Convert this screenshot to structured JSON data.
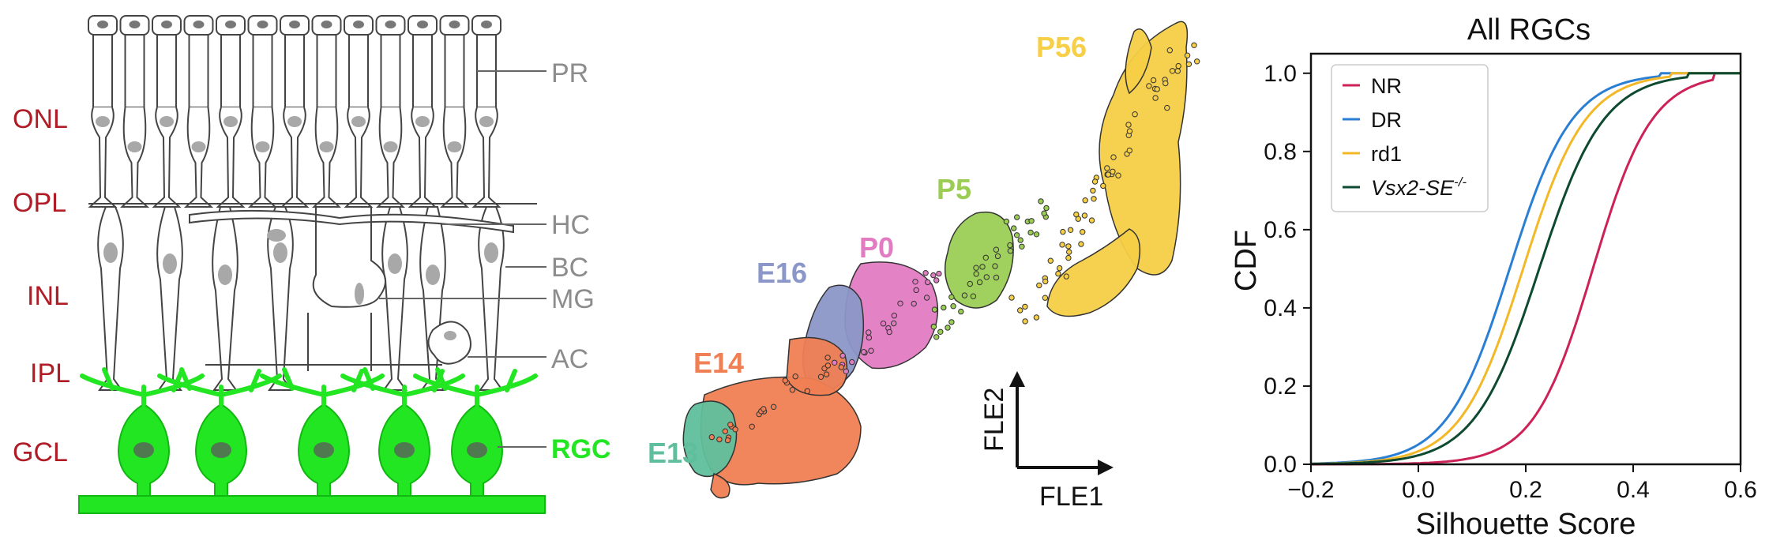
{
  "colors": {
    "layer_label": "#b01c26",
    "cell_label": "#8c8c8c",
    "rgc": "#22e622",
    "rgc_edge": "#12b812",
    "outline": "#444444",
    "nucleus": "#a8a8a8"
  },
  "panel_a": {
    "layers": [
      "ONL",
      "OPL",
      "INL",
      "IPL",
      "GCL"
    ],
    "cells": [
      "PR",
      "HC",
      "BC",
      "MG",
      "AC"
    ],
    "rgc_label": "RGC"
  },
  "panel_b": {
    "clusters": [
      {
        "label": "E13",
        "color": "#5fbf9c"
      },
      {
        "label": "E14",
        "color": "#f07f53"
      },
      {
        "label": "E16",
        "color": "#8b97c8"
      },
      {
        "label": "P0",
        "color": "#e27cc2"
      },
      {
        "label": "P5",
        "color": "#9bcd55"
      },
      {
        "label": "P56",
        "color": "#f6cf46"
      }
    ],
    "axis_y": "FLE2",
    "axis_x": "FLE1"
  },
  "chart_data": {
    "type": "line",
    "title": "All RGCs",
    "xlabel": "Silhouette Score",
    "ylabel": "CDF",
    "xlim": [
      -0.2,
      0.6
    ],
    "ylim": [
      0.0,
      1.05
    ],
    "xticks": [
      "-0.2",
      "0.0",
      "0.2",
      "0.4",
      "0.6"
    ],
    "yticks": [
      "0.0",
      "0.2",
      "0.4",
      "0.6",
      "0.8",
      "1.0"
    ],
    "grid": false,
    "legend": "top-left",
    "series": [
      {
        "name": "NR",
        "color": "#cc2257",
        "mu": 0.325,
        "s": 0.055,
        "max_x": 0.55
      },
      {
        "name": "DR",
        "color": "#2a7fd4",
        "mu": 0.17,
        "s": 0.058,
        "max_x": 0.45
      },
      {
        "name": "rd1",
        "color": "#f2b827",
        "mu": 0.195,
        "s": 0.058,
        "max_x": 0.47
      },
      {
        "name": "Vsx2-SE",
        "name_sup": "-/-",
        "color": "#0e4a30",
        "mu": 0.225,
        "s": 0.06,
        "max_x": 0.5
      }
    ]
  }
}
